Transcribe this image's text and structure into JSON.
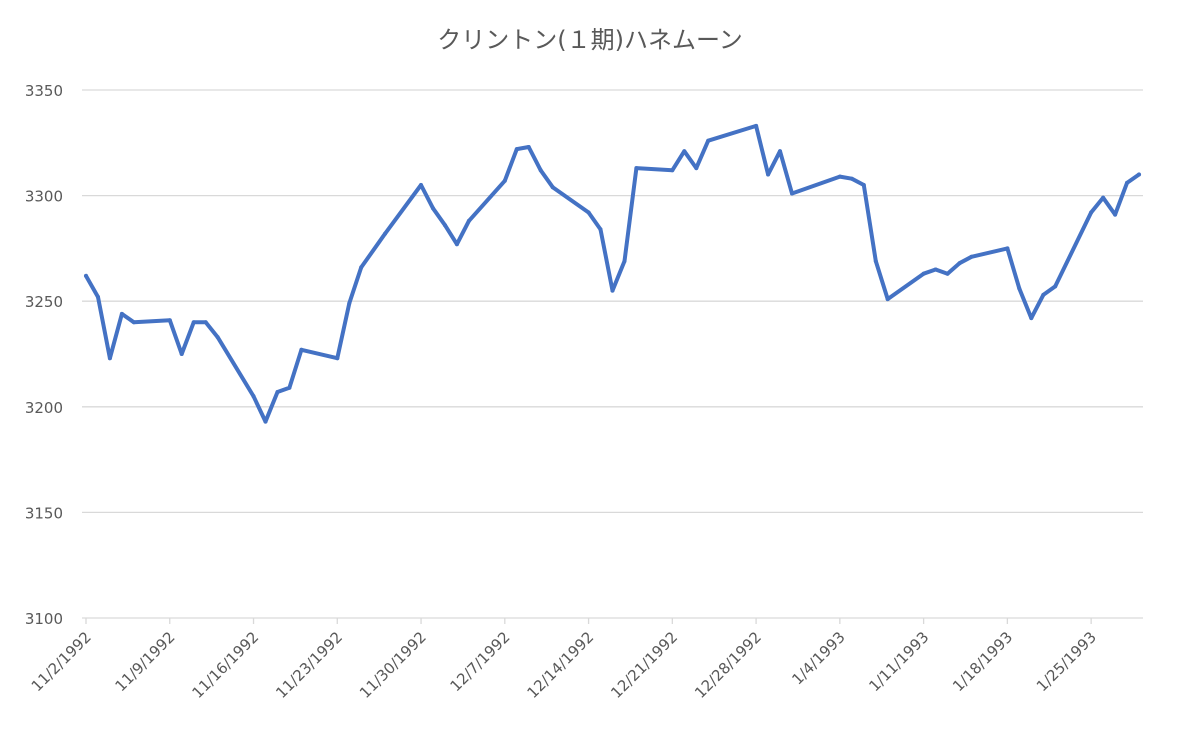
{
  "chart_data": {
    "type": "line",
    "title": "クリントン(１期)ハネムーン",
    "xlabel": "",
    "ylabel": "",
    "ylim": [
      3100,
      3350
    ],
    "yticks": [
      3100,
      3150,
      3200,
      3250,
      3300,
      3350
    ],
    "xlim": [
      "1992-11-02",
      "1993-01-29"
    ],
    "xtick_labels": [
      "11/2/1992",
      "11/9/1992",
      "11/16/1992",
      "11/23/1992",
      "11/30/1992",
      "12/7/1992",
      "12/14/1992",
      "12/21/1992",
      "12/28/1992",
      "1/4/1993",
      "1/11/1993",
      "1/18/1993",
      "1/25/1993"
    ],
    "xtick_dates": [
      "1992-11-02",
      "1992-11-09",
      "1992-11-16",
      "1992-11-23",
      "1992-11-30",
      "1992-12-07",
      "1992-12-14",
      "1992-12-21",
      "1992-12-28",
      "1993-01-04",
      "1993-01-11",
      "1993-01-18",
      "1993-01-25"
    ],
    "grid": true,
    "series_color": "#4472C4",
    "gridline_color": "#d9d9d9",
    "series": [
      {
        "name": "",
        "points": [
          [
            "1992-11-02",
            3262
          ],
          [
            "1992-11-03",
            3252
          ],
          [
            "1992-11-04",
            3223
          ],
          [
            "1992-11-05",
            3244
          ],
          [
            "1992-11-06",
            3240
          ],
          [
            "1992-11-09",
            3241
          ],
          [
            "1992-11-10",
            3225
          ],
          [
            "1992-11-11",
            3240
          ],
          [
            "1992-11-12",
            3240
          ],
          [
            "1992-11-13",
            3233
          ],
          [
            "1992-11-16",
            3205
          ],
          [
            "1992-11-17",
            3193
          ],
          [
            "1992-11-18",
            3207
          ],
          [
            "1992-11-19",
            3209
          ],
          [
            "1992-11-20",
            3227
          ],
          [
            "1992-11-23",
            3223
          ],
          [
            "1992-11-24",
            3249
          ],
          [
            "1992-11-25",
            3266
          ],
          [
            "1992-11-27",
            3282
          ],
          [
            "1992-11-30",
            3305
          ],
          [
            "1992-12-01",
            3294
          ],
          [
            "1992-12-02",
            3286
          ],
          [
            "1992-12-03",
            3277
          ],
          [
            "1992-12-04",
            3288
          ],
          [
            "1992-12-07",
            3307
          ],
          [
            "1992-12-08",
            3322
          ],
          [
            "1992-12-09",
            3323
          ],
          [
            "1992-12-10",
            3312
          ],
          [
            "1992-12-11",
            3304
          ],
          [
            "1992-12-14",
            3292
          ],
          [
            "1992-12-15",
            3284
          ],
          [
            "1992-12-16",
            3255
          ],
          [
            "1992-12-17",
            3269
          ],
          [
            "1992-12-18",
            3313
          ],
          [
            "1992-12-21",
            3312
          ],
          [
            "1992-12-22",
            3321
          ],
          [
            "1992-12-23",
            3313
          ],
          [
            "1992-12-24",
            3326
          ],
          [
            "1992-12-28",
            3333
          ],
          [
            "1992-12-29",
            3310
          ],
          [
            "1992-12-30",
            3321
          ],
          [
            "1992-12-31",
            3301
          ],
          [
            "1993-01-04",
            3309
          ],
          [
            "1993-01-05",
            3308
          ],
          [
            "1993-01-06",
            3305
          ],
          [
            "1993-01-07",
            3269
          ],
          [
            "1993-01-08",
            3251
          ],
          [
            "1993-01-11",
            3263
          ],
          [
            "1993-01-12",
            3265
          ],
          [
            "1993-01-13",
            3263
          ],
          [
            "1993-01-14",
            3268
          ],
          [
            "1993-01-15",
            3271
          ],
          [
            "1993-01-18",
            3275
          ],
          [
            "1993-01-19",
            3256
          ],
          [
            "1993-01-20",
            3242
          ],
          [
            "1993-01-21",
            3253
          ],
          [
            "1993-01-22",
            3257
          ],
          [
            "1993-01-25",
            3292
          ],
          [
            "1993-01-26",
            3299
          ],
          [
            "1993-01-27",
            3291
          ],
          [
            "1993-01-28",
            3306
          ],
          [
            "1993-01-29",
            3310
          ]
        ]
      }
    ]
  }
}
